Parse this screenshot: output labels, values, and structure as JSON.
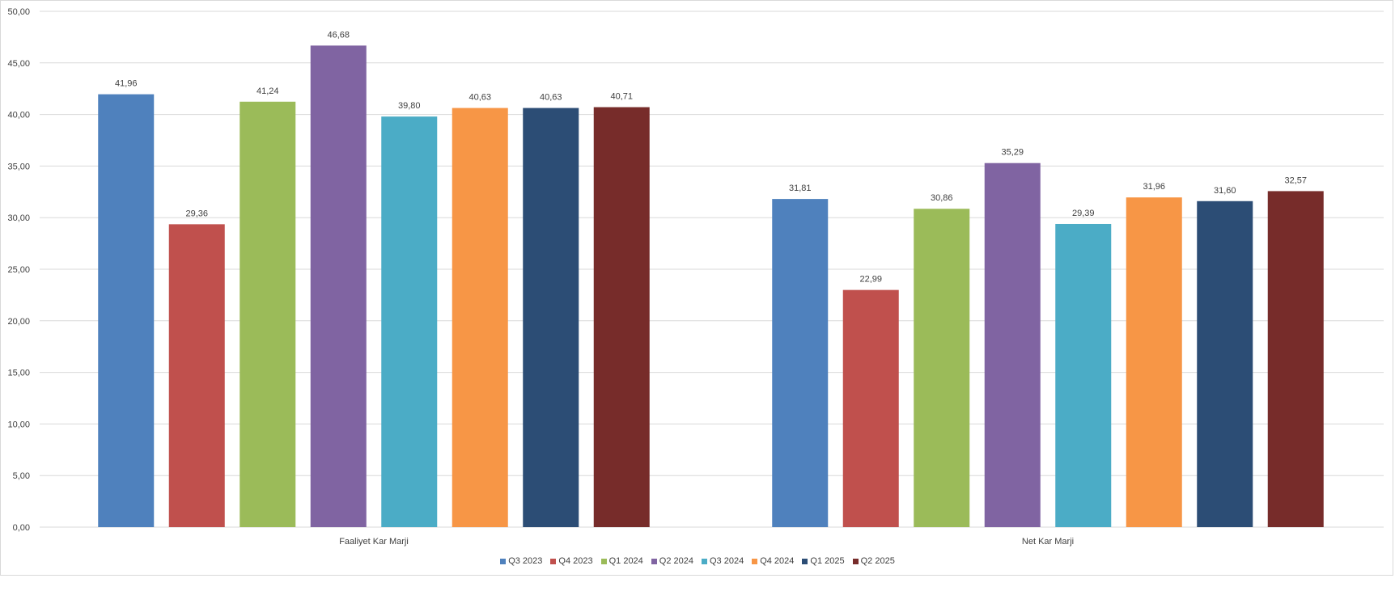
{
  "chart_data": {
    "type": "bar",
    "title": "",
    "xlabel": "",
    "ylabel": "",
    "ylim": [
      0,
      50
    ],
    "yticks": [
      "0,00",
      "5,00",
      "10,00",
      "15,00",
      "20,00",
      "25,00",
      "30,00",
      "35,00",
      "40,00",
      "45,00",
      "50,00"
    ],
    "grid": true,
    "legend_position": "bottom",
    "categories": [
      "Faaliyet Kar Marji",
      "Net Kar Marji"
    ],
    "series": [
      {
        "name": "Q3 2023",
        "color": "#4F81BD",
        "values": [
          41.96,
          31.81
        ],
        "labels": [
          "41,96",
          "31,81"
        ]
      },
      {
        "name": "Q4 2023",
        "color": "#C0504D",
        "values": [
          29.36,
          22.99
        ],
        "labels": [
          "29,36",
          "22,99"
        ]
      },
      {
        "name": "Q1 2024",
        "color": "#9BBB59",
        "values": [
          41.24,
          30.86
        ],
        "labels": [
          "41,24",
          "30,86"
        ]
      },
      {
        "name": "Q2 2024",
        "color": "#8064A2",
        "values": [
          46.68,
          35.29
        ],
        "labels": [
          "46,68",
          "35,29"
        ]
      },
      {
        "name": "Q3 2024",
        "color": "#4BACC6",
        "values": [
          39.8,
          29.39
        ],
        "labels": [
          "39,80",
          "29,39"
        ]
      },
      {
        "name": "Q4 2024",
        "color": "#F79646",
        "values": [
          40.63,
          31.96
        ],
        "labels": [
          "40,63",
          "31,96"
        ]
      },
      {
        "name": "Q1 2025",
        "color": "#2C4D75",
        "values": [
          40.63,
          31.6
        ],
        "labels": [
          "40,63",
          "31,60"
        ]
      },
      {
        "name": "Q2 2025",
        "color": "#772C2A",
        "values": [
          40.71,
          32.57
        ],
        "labels": [
          "40,71",
          "32,57"
        ]
      }
    ]
  }
}
